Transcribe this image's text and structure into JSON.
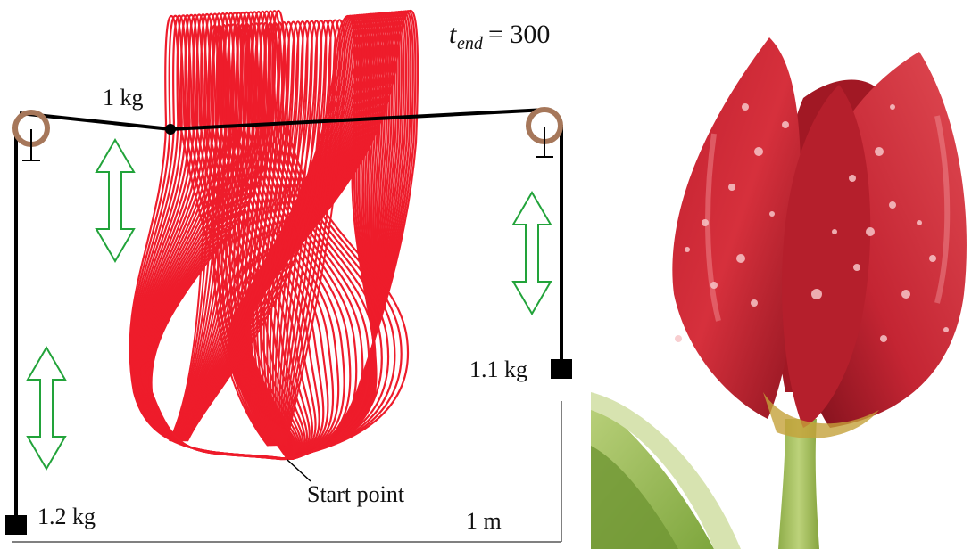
{
  "labels": {
    "t_main": "t",
    "t_sub": "end",
    "t_value": "= 300",
    "mass_top": "1 kg",
    "mass_left": "1.2 kg",
    "mass_right": "1.1 kg",
    "start_point": "Start point",
    "scale": "1 m"
  },
  "colors": {
    "trajectory": "#ee1c2b",
    "pulley": "#a6775a",
    "arrow": "#22a33a",
    "string": "#000000"
  },
  "tulip_icon": "tulip-photo"
}
